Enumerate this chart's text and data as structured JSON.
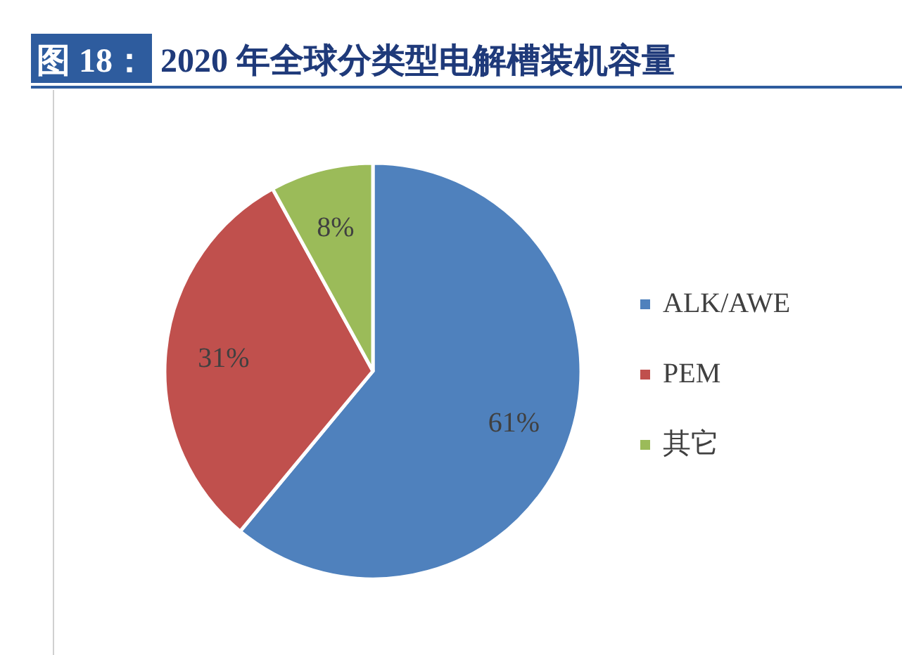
{
  "chart_data": {
    "type": "pie",
    "title": "图 18： 2020 年全球分类型电解槽装机容量",
    "categories": [
      "ALK/AWE",
      "PEM",
      "其它"
    ],
    "values": [
      61,
      31,
      8
    ],
    "colors": [
      "#4f81bd",
      "#c0504d",
      "#9bbb59"
    ],
    "value_labels": [
      "61%",
      "31%",
      "8%"
    ],
    "legend": "right"
  }
}
